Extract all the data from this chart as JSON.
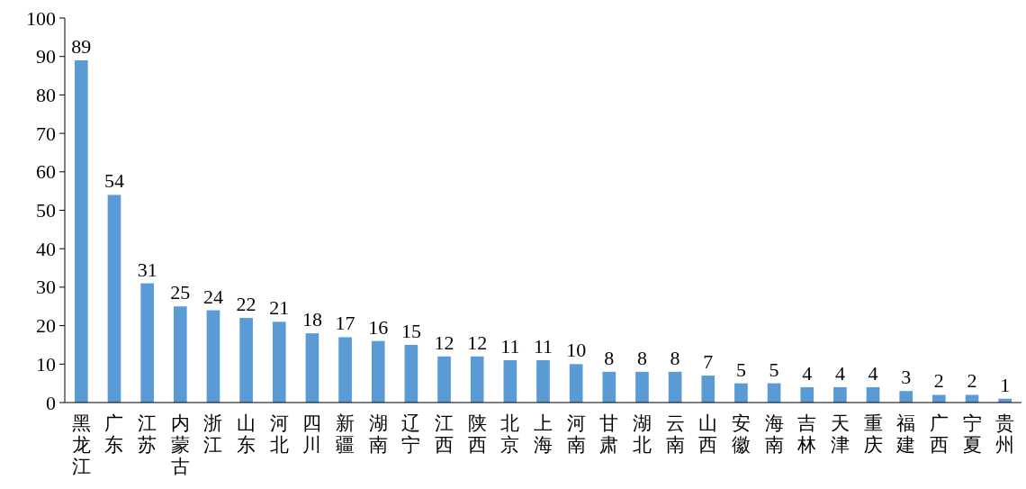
{
  "chart_data": {
    "type": "bar",
    "categories": [
      "黑龙江",
      "广东",
      "江苏",
      "内蒙古",
      "浙江",
      "山东",
      "河北",
      "四川",
      "新疆",
      "湖南",
      "辽宁",
      "江西",
      "陕西",
      "北京",
      "上海",
      "河南",
      "甘肃",
      "湖北",
      "云南",
      "山西",
      "安徽",
      "海南",
      "吉林",
      "天津",
      "重庆",
      "福建",
      "广西",
      "宁夏",
      "贵州"
    ],
    "values": [
      89,
      54,
      31,
      25,
      24,
      22,
      21,
      18,
      17,
      16,
      15,
      12,
      12,
      11,
      11,
      10,
      8,
      8,
      8,
      7,
      5,
      5,
      4,
      4,
      4,
      3,
      2,
      2,
      1
    ],
    "color": "#5b9bd5",
    "ylim": [
      0,
      100
    ],
    "yticks": [
      0,
      10,
      20,
      30,
      40,
      50,
      60,
      70,
      80,
      90,
      100
    ],
    "data_labels": true,
    "grid": false
  }
}
